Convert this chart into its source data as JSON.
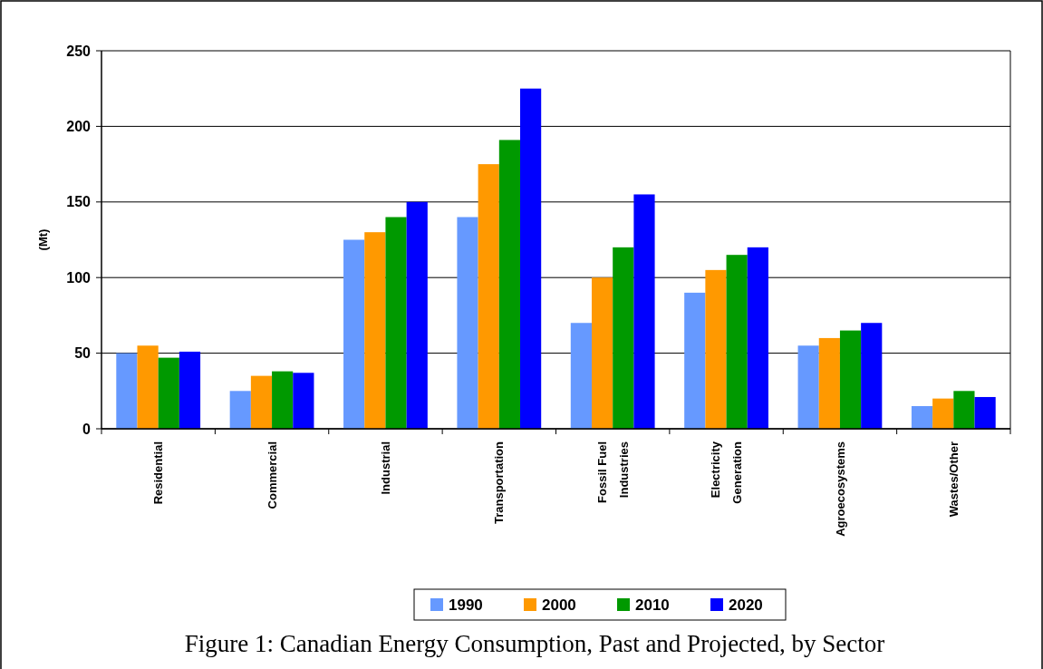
{
  "chart_data": {
    "type": "bar",
    "title": "Figure 1: Canadian Energy Consumption, Past and Projected, by Sector",
    "ylabel": "(Mt)",
    "categories": [
      "Residential",
      "Commercial",
      "Industrial",
      "Transportation",
      "Fossil Fuel\nIndustries",
      "Electricity\nGeneration",
      "Agroecosystems",
      "Wastes/Other"
    ],
    "series": [
      {
        "name": "1990",
        "color": "#6699ff",
        "values": [
          50,
          25,
          125,
          140,
          70,
          90,
          55,
          15
        ]
      },
      {
        "name": "2000",
        "color": "#ff9900",
        "values": [
          55,
          35,
          130,
          175,
          100,
          105,
          60,
          20
        ]
      },
      {
        "name": "2010",
        "color": "#009900",
        "values": [
          47,
          38,
          140,
          191,
          120,
          115,
          65,
          25
        ]
      },
      {
        "name": "2020",
        "color": "#0000ff",
        "values": [
          51,
          37,
          150,
          225,
          155,
          120,
          70,
          21
        ]
      }
    ],
    "ylim": [
      0,
      250
    ],
    "yticks": [
      0,
      50,
      100,
      150,
      200,
      250
    ],
    "grid": "y",
    "legend": "bottom"
  }
}
